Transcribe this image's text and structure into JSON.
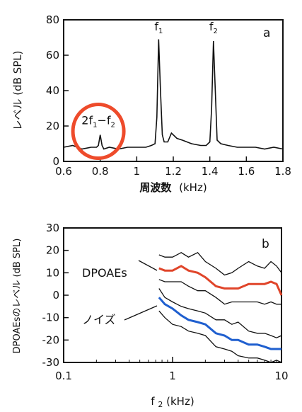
{
  "chart_data": [
    {
      "type": "line",
      "panel_letter": "a",
      "xlabel_main": "周波数",
      "xlabel_unit": "(kHz)",
      "ylabel": "レベル (dB SPL)",
      "xlim": [
        0.6,
        1.8
      ],
      "ylim": [
        0,
        80
      ],
      "x_ticks": [
        0.6,
        0.8,
        1.0,
        1.2,
        1.4,
        1.6,
        1.8
      ],
      "x_tick_labels": [
        "0.6",
        "0.8",
        "1",
        "1.2",
        "1.4",
        "1.6",
        "1.8"
      ],
      "y_ticks": [
        0,
        20,
        40,
        60,
        80
      ],
      "y_tick_labels": [
        "0",
        "20",
        "40",
        "60",
        "80"
      ],
      "grid": false,
      "series": [
        {
          "x": [
            0.6,
            0.65,
            0.7,
            0.75,
            0.78,
            0.79,
            0.8,
            0.81,
            0.82,
            0.85,
            0.9,
            0.95,
            1.0,
            1.05,
            1.08,
            1.1,
            1.11,
            1.12,
            1.13,
            1.14,
            1.15,
            1.17,
            1.19,
            1.2,
            1.22,
            1.25,
            1.3,
            1.35,
            1.38,
            1.4,
            1.41,
            1.42,
            1.43,
            1.44,
            1.46,
            1.5,
            1.55,
            1.6,
            1.65,
            1.7,
            1.75,
            1.8
          ],
          "y": [
            8,
            9,
            7,
            8,
            8,
            9,
            15,
            9,
            7,
            8,
            7,
            8,
            8,
            8,
            9,
            10,
            25,
            69,
            40,
            15,
            11,
            11,
            16,
            15,
            13,
            12,
            10,
            9,
            9,
            11,
            30,
            68,
            40,
            12,
            10,
            9,
            8,
            8,
            8,
            7,
            8,
            7
          ]
        }
      ],
      "annotations": [
        {
          "text": "f",
          "sub": "1",
          "x": 1.12,
          "y": 74
        },
        {
          "text": "f",
          "sub": "2",
          "x": 1.42,
          "y": 74
        },
        {
          "text": "2f",
          "sub1": "1",
          "mid": "−f",
          "sub2": "2",
          "x": 0.79,
          "y": 21
        }
      ],
      "highlight": {
        "shape": "circle",
        "color": "#ee4b2b",
        "x": 0.79,
        "y": 17
      }
    },
    {
      "type": "line",
      "panel_letter": "b",
      "xlabel_main": "f",
      "xlabel_sub": "2",
      "xlabel_unit": "(kHz)",
      "ylabel": "DPOAEsのレベル (dB SPL)",
      "xscale": "log",
      "xlim": [
        0.1,
        10
      ],
      "ylim": [
        -30,
        30
      ],
      "x_ticks": [
        0.1,
        1,
        10
      ],
      "x_tick_labels": [
        "0.1",
        "1",
        "10"
      ],
      "y_ticks": [
        -30,
        -20,
        -10,
        0,
        10,
        20,
        30
      ],
      "y_tick_labels": [
        "-30",
        "-20",
        "-10",
        "0",
        "10",
        "20",
        "30"
      ],
      "grid": false,
      "x": [
        0.75,
        0.85,
        1.0,
        1.2,
        1.4,
        1.7,
        2.0,
        2.5,
        3.0,
        3.5,
        4.0,
        5.0,
        6.0,
        7.0,
        8.0,
        9.0,
        10.0
      ],
      "series": [
        {
          "name": "DPOAEs",
          "color": "#e0452a",
          "values": [
            12,
            11,
            11,
            13,
            11,
            10,
            8,
            4,
            3,
            3,
            3,
            5,
            5,
            5,
            6,
            5,
            0
          ]
        },
        {
          "name": "",
          "color": "#111111",
          "values": [
            18,
            17,
            17,
            19,
            17,
            19,
            15,
            12,
            9,
            10,
            12,
            15,
            13,
            12,
            15,
            13,
            10
          ]
        },
        {
          "name": "",
          "color": "#111111",
          "values": [
            7,
            6,
            6,
            6,
            4,
            2,
            2,
            -1,
            -4,
            -3,
            -3,
            -3,
            -3,
            -4,
            -3,
            -4,
            -4
          ]
        },
        {
          "name": "ノイズ",
          "color": "#1f5fcf",
          "values": [
            -1,
            -4,
            -6,
            -9,
            -11,
            -12,
            -13,
            -17,
            -18,
            -20,
            -20,
            -22,
            -22,
            -23,
            -24,
            -24,
            -24
          ]
        },
        {
          "name": "",
          "color": "#111111",
          "values": [
            3,
            -1,
            -3,
            -5,
            -6,
            -7,
            -8,
            -11,
            -11,
            -13,
            -12,
            -16,
            -17,
            -17,
            -18,
            -19,
            -18
          ]
        },
        {
          "name": "",
          "color": "#111111",
          "values": [
            -7,
            -10,
            -13,
            -14,
            -16,
            -17,
            -18,
            -23,
            -24,
            -25,
            -27,
            -28,
            -28,
            -29,
            -30,
            -29,
            -30
          ]
        }
      ]
    }
  ]
}
